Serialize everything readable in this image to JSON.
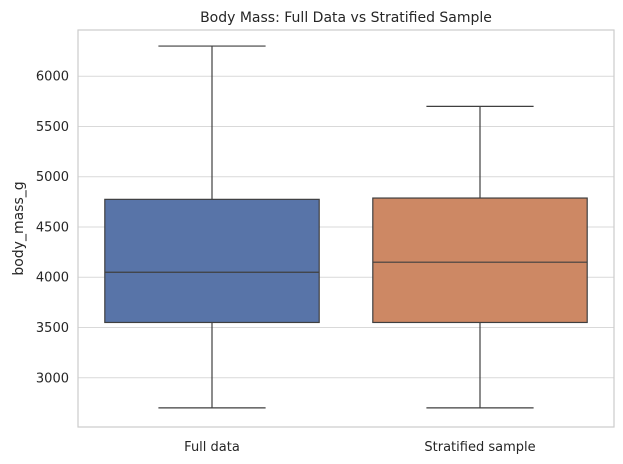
{
  "chart_data": {
    "type": "box",
    "title": "Body Mass: Full Data vs Stratified Sample",
    "xlabel": "",
    "ylabel": "body_mass_g",
    "categories": [
      "Full data",
      "Stratified sample"
    ],
    "boxes": [
      {
        "category": "Full data",
        "whisker_low": 2700,
        "q1": 3550,
        "median": 4050,
        "q3": 4775,
        "whisker_high": 6300,
        "color": "#5874a8"
      },
      {
        "category": "Stratified sample",
        "whisker_low": 2700,
        "q1": 3550,
        "median": 4150,
        "q3": 4788,
        "whisker_high": 5700,
        "color": "#cd8864"
      }
    ],
    "ylim": [
      2510,
      6460
    ],
    "yticks": [
      3000,
      3500,
      4000,
      4500,
      5000,
      5500,
      6000
    ],
    "grid": "y"
  }
}
